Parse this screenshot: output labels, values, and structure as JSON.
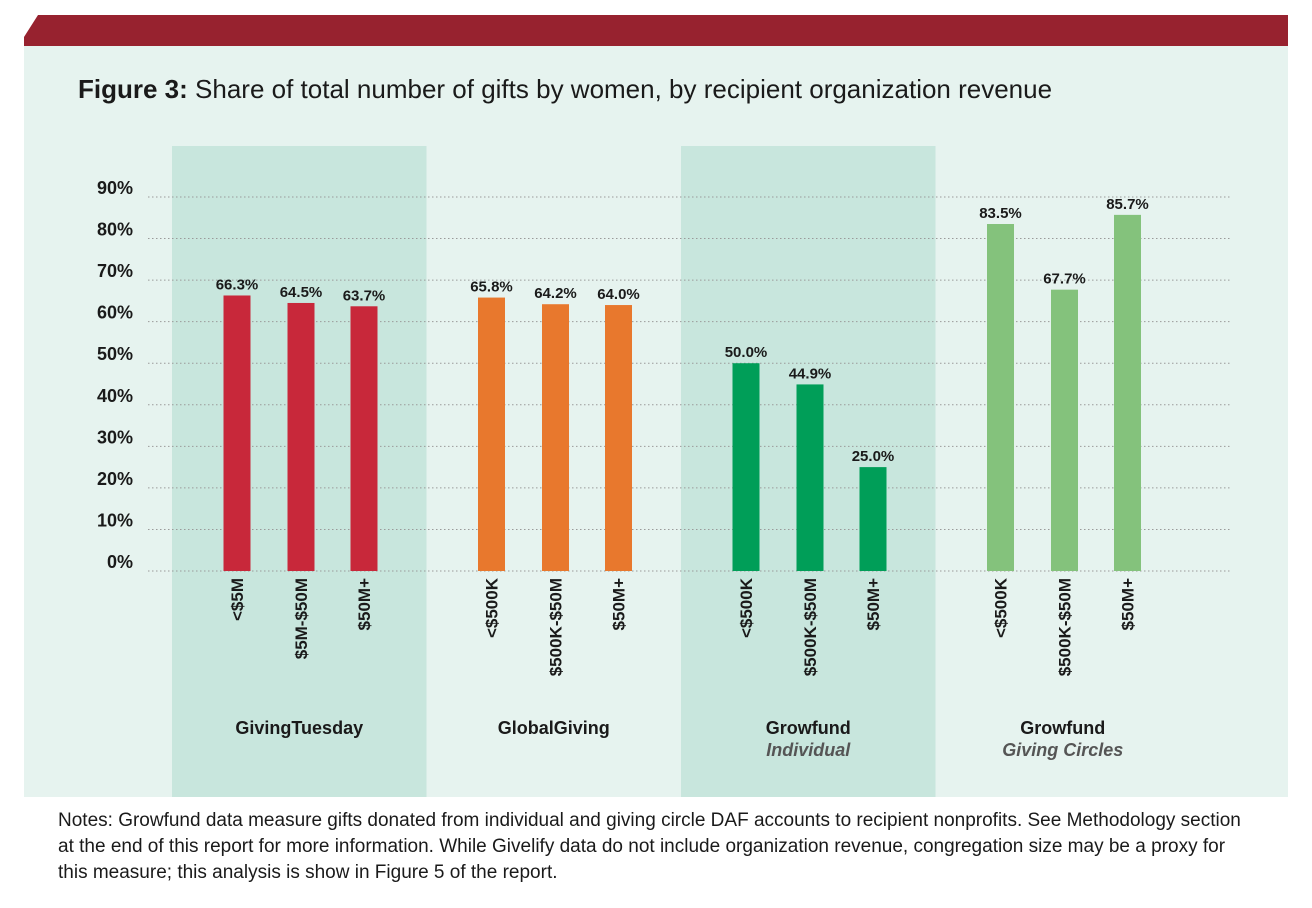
{
  "title": {
    "lead": "Figure 3:",
    "text": "Share of total number of gifts by women, by recipient organization revenue"
  },
  "notes": "Notes: Growfund data measure gifts donated from individual and giving circle DAF accounts to recipient nonprofits. See Methodology section at the end of this report for more information. While Givelify data do not include organization revenue, congregation size may be a proxy for this measure; this analysis is show in Figure 5 of the report.",
  "colors": {
    "header_band": "#97222f",
    "panel_bg": "#e6f3ef",
    "band_dark": "#c8e6dd",
    "band_light": "#e6f3ef",
    "grid": "#9a9a9a",
    "text": "#1a1a1a"
  },
  "chart_data": {
    "type": "bar",
    "ylim": [
      0,
      90
    ],
    "yticks": [
      0,
      10,
      20,
      30,
      40,
      50,
      60,
      70,
      80,
      90
    ],
    "ytick_labels": [
      "0%",
      "10%",
      "20%",
      "30%",
      "40%",
      "50%",
      "60%",
      "70%",
      "80%",
      "90%"
    ],
    "grid": true,
    "groups": [
      {
        "name": "GivingTuesday",
        "subtitle": "",
        "color": "#c8283a",
        "categories": [
          "<$5M",
          "$5M-$50M",
          "$50M+"
        ],
        "values": [
          66.3,
          64.5,
          63.7
        ],
        "labels": [
          "66.3%",
          "64.5%",
          "63.7%"
        ]
      },
      {
        "name": "GlobalGiving",
        "subtitle": "",
        "color": "#e8782d",
        "categories": [
          "<$500K",
          "$500K-$50M",
          "$50M+"
        ],
        "values": [
          65.8,
          64.2,
          64.0
        ],
        "labels": [
          "65.8%",
          "64.2%",
          "64.0%"
        ]
      },
      {
        "name": "Growfund",
        "subtitle": "Individual",
        "color": "#009e58",
        "categories": [
          "<$500K",
          "$500K-$50M",
          "$50M+"
        ],
        "values": [
          50.0,
          44.9,
          25.0
        ],
        "labels": [
          "50.0%",
          "44.9%",
          "25.0%"
        ]
      },
      {
        "name": "Growfund",
        "subtitle": "Giving Circles",
        "color": "#84c27c",
        "categories": [
          "<$500K",
          "$500K-$50M",
          "$50M+"
        ],
        "values": [
          83.5,
          67.7,
          85.7
        ],
        "labels": [
          "83.5%",
          "67.7%",
          "85.7%"
        ]
      }
    ]
  }
}
